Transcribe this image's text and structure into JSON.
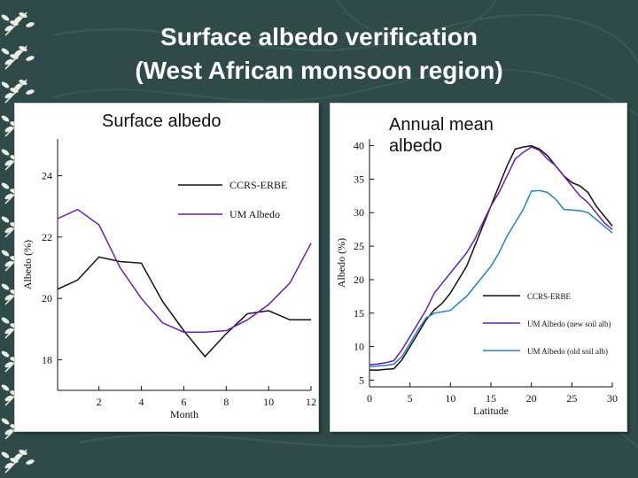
{
  "slide": {
    "title_line1": "Surface albedo verification",
    "title_line2": "(West African monsoon region)"
  },
  "colors": {
    "background": "#2f4a48",
    "ccrs_erbe": "#111111",
    "um_albedo": "#6a1fa6",
    "um_albedo_old": "#2a7fbf"
  },
  "panels": {
    "left_heading": "Surface albedo",
    "right_heading": "Annual mean albedo"
  },
  "chart_data": [
    {
      "type": "line",
      "xlabel": "Month",
      "ylabel": "Albedo (%)",
      "xlim": [
        0.05,
        12
      ],
      "ylim": [
        17,
        25.2
      ],
      "xticks": [
        2,
        4,
        6,
        8,
        10,
        12
      ],
      "yticks": [
        18,
        20,
        22,
        24
      ],
      "legend_position": "top-right",
      "series": [
        {
          "name": "CCRS-ERBE",
          "x": [
            0.05,
            1,
            2,
            3,
            4,
            5,
            6,
            7,
            8,
            9,
            10,
            11,
            12
          ],
          "y": [
            20.3,
            20.6,
            21.35,
            21.2,
            21.15,
            19.9,
            18.95,
            18.1,
            18.85,
            19.5,
            19.6,
            19.3,
            19.3
          ]
        },
        {
          "name": "UM Albedo",
          "x": [
            0.05,
            1,
            2,
            3,
            4,
            5,
            6,
            7,
            8,
            9,
            10,
            11,
            12
          ],
          "y": [
            22.6,
            22.9,
            22.4,
            21.0,
            20.0,
            19.2,
            18.9,
            18.9,
            18.95,
            19.3,
            19.8,
            20.5,
            21.8
          ]
        }
      ]
    },
    {
      "type": "line",
      "xlabel": "Latitude",
      "ylabel": "Albedo (%)",
      "xlim": [
        0,
        30
      ],
      "ylim": [
        4,
        41
      ],
      "xticks": [
        0,
        5,
        10,
        15,
        20,
        25,
        30
      ],
      "yticks": [
        5,
        10,
        15,
        20,
        25,
        30,
        35,
        40
      ],
      "legend_position": "bottom-right",
      "series": [
        {
          "name": "CCRS-ERBE",
          "x": [
            0,
            1,
            2,
            3,
            4,
            5,
            6,
            7,
            8,
            9,
            10,
            11,
            12,
            13,
            14,
            15,
            16,
            17,
            18,
            19,
            20,
            21,
            22,
            23,
            24,
            25,
            26,
            27,
            28,
            29,
            30
          ],
          "y": [
            6.5,
            6.5,
            6.6,
            6.7,
            8.0,
            10.0,
            12.0,
            14.0,
            15.5,
            16.5,
            18.0,
            20.0,
            22.0,
            25.0,
            28.0,
            31.0,
            34.0,
            37.0,
            39.5,
            39.8,
            40.0,
            39.5,
            38.5,
            37.0,
            35.5,
            34.5,
            34.0,
            33.0,
            31.0,
            29.5,
            28.0
          ]
        },
        {
          "name": "UM Albedo (new soil alb)",
          "x": [
            0,
            1,
            2,
            3,
            4,
            5,
            6,
            7,
            8,
            9,
            10,
            11,
            12,
            13,
            14,
            15,
            16,
            17,
            18,
            19,
            20,
            21,
            22,
            23,
            24,
            25,
            26,
            27,
            28,
            29,
            30
          ],
          "y": [
            7.3,
            7.4,
            7.6,
            7.9,
            9.5,
            11.5,
            13.5,
            15.5,
            18.0,
            19.5,
            21.0,
            22.5,
            24.0,
            26.0,
            28.5,
            31.0,
            33.0,
            35.5,
            38.0,
            39.0,
            39.8,
            39.3,
            38.0,
            37.0,
            35.5,
            34.0,
            32.5,
            31.5,
            30.0,
            28.5,
            27.5
          ]
        },
        {
          "name": "UM Albedo (old soil alb)",
          "x": [
            0,
            1,
            2,
            3,
            4,
            5,
            6,
            7,
            8,
            9,
            10,
            11,
            12,
            13,
            14,
            15,
            16,
            17,
            18,
            19,
            20,
            21,
            22,
            23,
            24,
            25,
            26,
            27,
            28,
            29,
            30
          ],
          "y": [
            7.0,
            7.1,
            7.2,
            7.4,
            8.5,
            10.5,
            12.5,
            14.3,
            15.0,
            15.2,
            15.4,
            16.5,
            17.5,
            19.0,
            20.5,
            22.0,
            24.0,
            26.5,
            28.5,
            30.5,
            33.2,
            33.3,
            33.0,
            32.0,
            30.5,
            30.4,
            30.3,
            30.0,
            29.0,
            28.0,
            27.0
          ]
        }
      ]
    }
  ]
}
